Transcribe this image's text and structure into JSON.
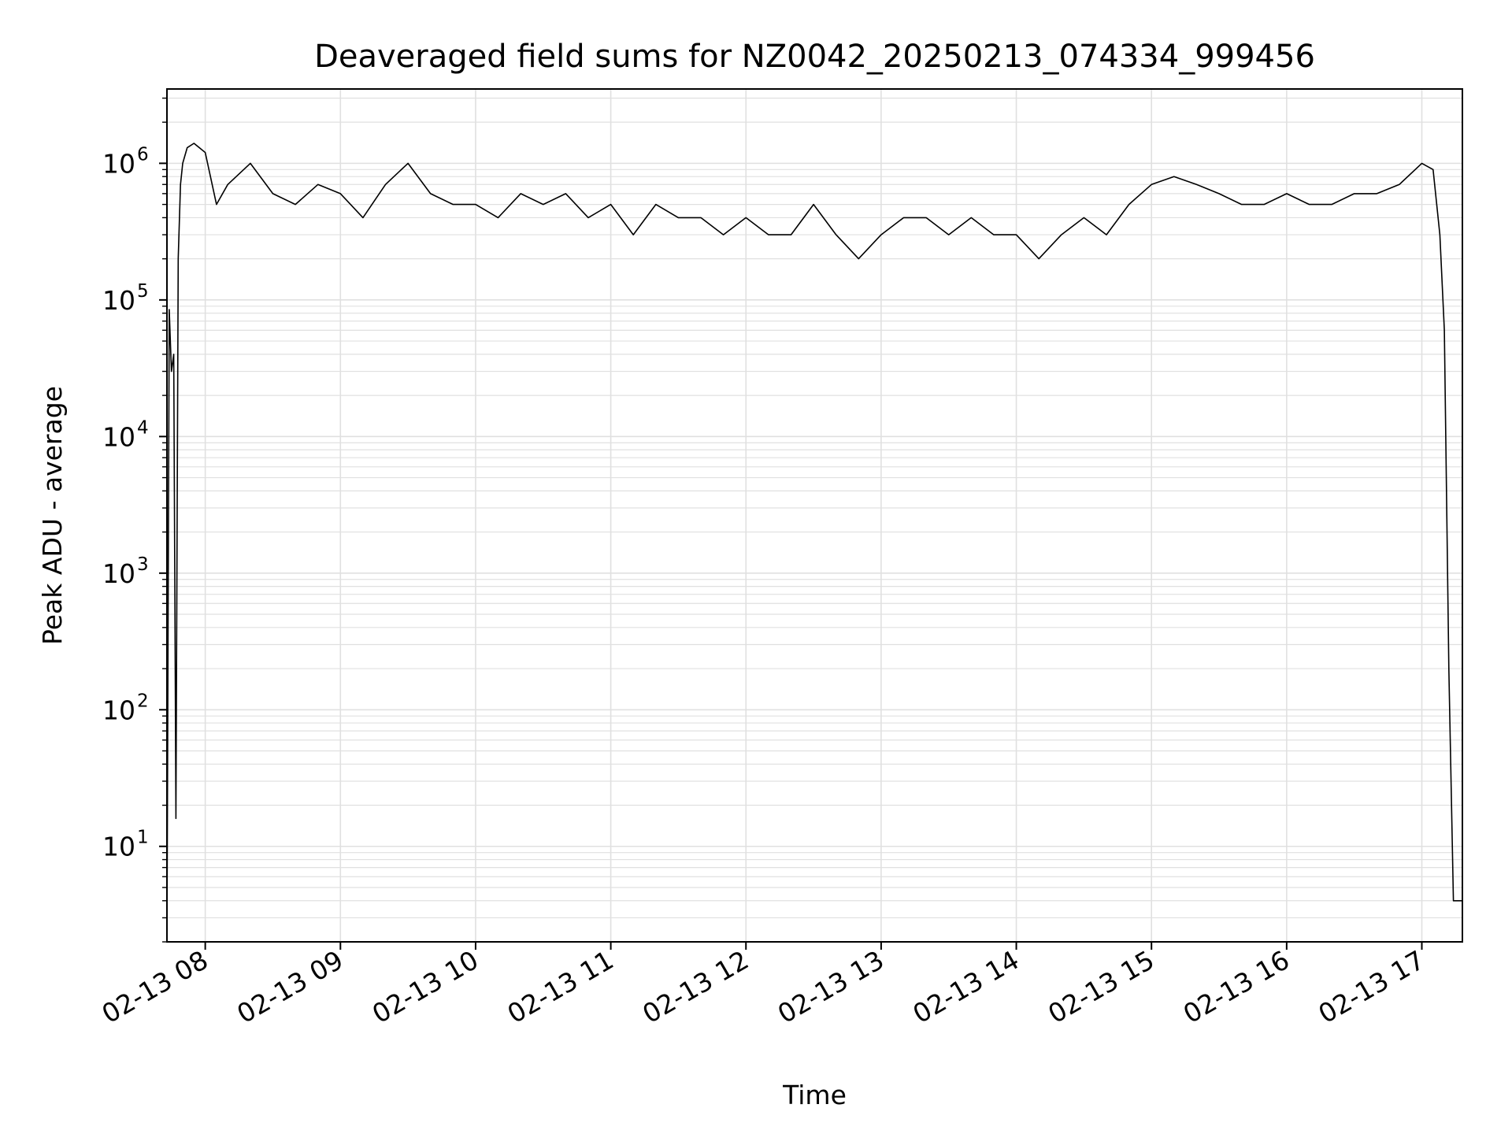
{
  "chart_data": {
    "type": "line",
    "title": "Deaveraged field sums for NZ0042_20250213_074334_999456",
    "xlabel": "Time",
    "ylabel": "Peak ADU - average",
    "y_scale": "log",
    "ylim": [
      2,
      3500000
    ],
    "xlim": [
      "02-13 07:43",
      "02-13 17:18"
    ],
    "grid": true,
    "legend": "none",
    "line_color": "#000000",
    "grid_color": "#e0e0e0",
    "x_ticks": [
      {
        "value": "02-13 08:00",
        "label": "02-13 08"
      },
      {
        "value": "02-13 09:00",
        "label": "02-13 09"
      },
      {
        "value": "02-13 10:00",
        "label": "02-13 10"
      },
      {
        "value": "02-13 11:00",
        "label": "02-13 11"
      },
      {
        "value": "02-13 12:00",
        "label": "02-13 12"
      },
      {
        "value": "02-13 13:00",
        "label": "02-13 13"
      },
      {
        "value": "02-13 14:00",
        "label": "02-13 14"
      },
      {
        "value": "02-13 15:00",
        "label": "02-13 15"
      },
      {
        "value": "02-13 16:00",
        "label": "02-13 16"
      },
      {
        "value": "02-13 17:00",
        "label": "02-13 17"
      }
    ],
    "y_ticks": [
      {
        "value": 10,
        "base": "10",
        "exp": "1"
      },
      {
        "value": 100,
        "base": "10",
        "exp": "2"
      },
      {
        "value": 1000,
        "base": "10",
        "exp": "3"
      },
      {
        "value": 10000,
        "base": "10",
        "exp": "4"
      },
      {
        "value": 100000,
        "base": "10",
        "exp": "5"
      },
      {
        "value": 1000000,
        "base": "10",
        "exp": "6"
      }
    ],
    "series": [
      {
        "x": [
          "02-13 07:43",
          "02-13 07:44",
          "02-13 07:45",
          "02-13 07:46",
          "02-13 07:47",
          "02-13 07:48",
          "02-13 07:49",
          "02-13 07:50",
          "02-13 07:52",
          "02-13 07:55",
          "02-13 08:00",
          "02-13 08:05",
          "02-13 08:10",
          "02-13 08:20",
          "02-13 08:30",
          "02-13 08:40",
          "02-13 08:50",
          "02-13 09:00",
          "02-13 09:10",
          "02-13 09:20",
          "02-13 09:30",
          "02-13 09:40",
          "02-13 09:50",
          "02-13 10:00",
          "02-13 10:10",
          "02-13 10:20",
          "02-13 10:30",
          "02-13 10:40",
          "02-13 10:50",
          "02-13 11:00",
          "02-13 11:10",
          "02-13 11:20",
          "02-13 11:30",
          "02-13 11:40",
          "02-13 11:50",
          "02-13 12:00",
          "02-13 12:10",
          "02-13 12:20",
          "02-13 12:30",
          "02-13 12:40",
          "02-13 12:50",
          "02-13 13:00",
          "02-13 13:10",
          "02-13 13:20",
          "02-13 13:30",
          "02-13 13:40",
          "02-13 13:50",
          "02-13 14:00",
          "02-13 14:10",
          "02-13 14:20",
          "02-13 14:30",
          "02-13 14:40",
          "02-13 14:50",
          "02-13 15:00",
          "02-13 15:10",
          "02-13 15:20",
          "02-13 15:30",
          "02-13 15:40",
          "02-13 15:50",
          "02-13 16:00",
          "02-13 16:10",
          "02-13 16:20",
          "02-13 16:30",
          "02-13 16:40",
          "02-13 16:50",
          "02-13 17:00",
          "02-13 17:05",
          "02-13 17:08",
          "02-13 17:10",
          "02-13 17:12",
          "02-13 17:14",
          "02-13 17:16",
          "02-13 17:18"
        ],
        "y": [
          2,
          85000,
          30000,
          40000,
          16,
          200000,
          700000,
          1000000,
          1300000,
          1400000,
          1200000,
          500000,
          700000,
          1000000,
          600000,
          500000,
          700000,
          600000,
          400000,
          700000,
          1000000,
          600000,
          500000,
          500000,
          400000,
          600000,
          500000,
          600000,
          400000,
          500000,
          300000,
          500000,
          400000,
          400000,
          300000,
          400000,
          300000,
          300000,
          500000,
          300000,
          200000,
          300000,
          400000,
          400000,
          300000,
          400000,
          300000,
          300000,
          200000,
          300000,
          400000,
          300000,
          500000,
          700000,
          800000,
          700000,
          600000,
          500000,
          500000,
          600000,
          500000,
          500000,
          600000,
          600000,
          700000,
          1000000,
          900000,
          300000,
          60000,
          200,
          4,
          4,
          4
        ]
      }
    ]
  }
}
